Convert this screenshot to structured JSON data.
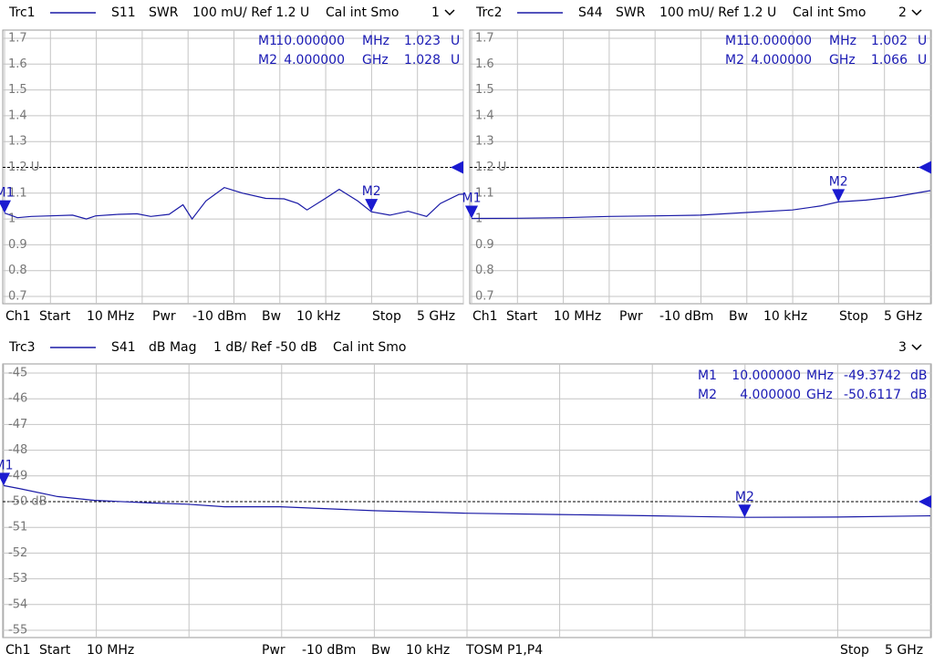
{
  "chart_data": [
    {
      "type": "line",
      "trace": "Trc1",
      "param": "S11",
      "format": "SWR",
      "scale": "100 mU/ Ref 1.2 U",
      "cal": "Cal int Smo",
      "channel": "1",
      "footer": [
        "Ch1",
        "Start",
        "10 MHz",
        "Pwr",
        "-10 dBm",
        "Bw",
        "10 kHz",
        "Stop",
        "5 GHz"
      ],
      "xlim": [
        10,
        5000
      ],
      "xticks": [
        10,
        509,
        1008,
        1507,
        2006,
        2505,
        3004,
        3503,
        4002,
        4501,
        5000
      ],
      "ylim": [
        0.7,
        1.7
      ],
      "yticks": [
        0.7,
        0.8,
        0.9,
        1,
        1.1,
        {
          "value": 1.2,
          "label": "1.2 U"
        },
        1.3,
        1.4,
        1.5,
        1.6,
        1.7
      ],
      "grid": true,
      "series": [
        {
          "name": "Trc1",
          "color": "#1a1aa6",
          "x": [
            10,
            150,
            300,
            500,
            750,
            900,
            1000,
            1250,
            1450,
            1600,
            1800,
            1950,
            2050,
            2200,
            2400,
            2600,
            2850,
            3050,
            3200,
            3300,
            3500,
            3650,
            3850,
            4000,
            4200,
            4400,
            4600,
            4750,
            4950,
            5000
          ],
          "values": [
            1.023,
            1.005,
            1.01,
            1.012,
            1.015,
            1.0,
            1.012,
            1.018,
            1.02,
            1.01,
            1.018,
            1.055,
            1.0,
            1.07,
            1.122,
            1.1,
            1.08,
            1.078,
            1.06,
            1.035,
            1.08,
            1.115,
            1.07,
            1.028,
            1.015,
            1.03,
            1.01,
            1.06,
            1.095,
            1.096
          ]
        }
      ],
      "markers": [
        {
          "name": "M1",
          "x": 10,
          "x_label": "10.000000",
          "x_unit": "MHz",
          "value": 1.023,
          "unit": "U"
        },
        {
          "name": "M2",
          "x": 4000,
          "x_label": "4.000000",
          "x_unit": "GHz",
          "value": 1.028,
          "unit": "U"
        }
      ]
    },
    {
      "type": "line",
      "trace": "Trc2",
      "param": "S44",
      "format": "SWR",
      "scale": "100 mU/ Ref 1.2 U",
      "cal": "Cal int Smo",
      "channel": "2",
      "footer": [
        "Ch1",
        "Start",
        "10 MHz",
        "Pwr",
        "-10 dBm",
        "Bw",
        "10 kHz",
        "Stop",
        "5 GHz"
      ],
      "xlim": [
        10,
        5000
      ],
      "xticks": [
        10,
        509,
        1008,
        1507,
        2006,
        2505,
        3004,
        3503,
        4002,
        4501,
        5000
      ],
      "ylim": [
        0.7,
        1.7
      ],
      "yticks": [
        0.7,
        0.8,
        0.9,
        1,
        1.1,
        {
          "value": 1.2,
          "label": "1.2 U"
        },
        1.3,
        1.4,
        1.5,
        1.6,
        1.7
      ],
      "grid": true,
      "series": [
        {
          "name": "Trc2",
          "color": "#1a1aa6",
          "x": [
            10,
            500,
            1000,
            1500,
            2000,
            2500,
            3000,
            3500,
            3800,
            4000,
            4300,
            4600,
            5000
          ],
          "values": [
            1.002,
            1.003,
            1.005,
            1.01,
            1.012,
            1.015,
            1.025,
            1.035,
            1.05,
            1.066,
            1.073,
            1.085,
            1.11
          ]
        }
      ],
      "markers": [
        {
          "name": "M1",
          "x": 10,
          "x_label": "10.000000",
          "x_unit": "MHz",
          "value": 1.002,
          "unit": "U"
        },
        {
          "name": "M2",
          "x": 4000,
          "x_label": "4.000000",
          "x_unit": "GHz",
          "value": 1.066,
          "unit": "U"
        }
      ]
    },
    {
      "type": "line",
      "trace": "Trc3",
      "param": "S41",
      "format": "dB Mag",
      "scale": "1 dB/ Ref -50 dB",
      "cal": "Cal int Smo",
      "channel": "3",
      "footer": [
        "Ch1",
        "Start",
        "10 MHz",
        "Pwr",
        "-10 dBm",
        "Bw",
        "10 kHz",
        "TOSM P1,P4",
        "Stop",
        "5 GHz"
      ],
      "xlim": [
        10,
        5000
      ],
      "xticks": [
        10,
        509,
        1008,
        1507,
        2006,
        2505,
        3004,
        3503,
        4002,
        4501,
        5000
      ],
      "ylim": [
        -55,
        -45
      ],
      "yticks": [
        -55,
        -54,
        -53,
        -52,
        -51,
        {
          "value": -50,
          "label": "-50 dB"
        },
        -49,
        -48,
        -47,
        -46,
        -45
      ],
      "grid": true,
      "series": [
        {
          "name": "Trc3",
          "color": "#1a1aa6",
          "x": [
            10,
            100,
            300,
            500,
            800,
            1000,
            1200,
            1500,
            2000,
            2500,
            3000,
            3500,
            4000,
            4500,
            5000
          ],
          "values": [
            -49.3742,
            -49.5,
            -49.8,
            -49.95,
            -50.05,
            -50.1,
            -50.2,
            -50.2,
            -50.35,
            -50.45,
            -50.5,
            -50.55,
            -50.6117,
            -50.6,
            -50.55
          ]
        }
      ],
      "markers": [
        {
          "name": "M1",
          "x": 10,
          "x_label": "10.000000",
          "x_unit": "MHz",
          "value": -49.3742,
          "unit": "dB"
        },
        {
          "name": "M2",
          "x": 4000,
          "x_label": "4.000000",
          "x_unit": "GHz",
          "value": -50.6117,
          "unit": "dB"
        }
      ]
    }
  ]
}
